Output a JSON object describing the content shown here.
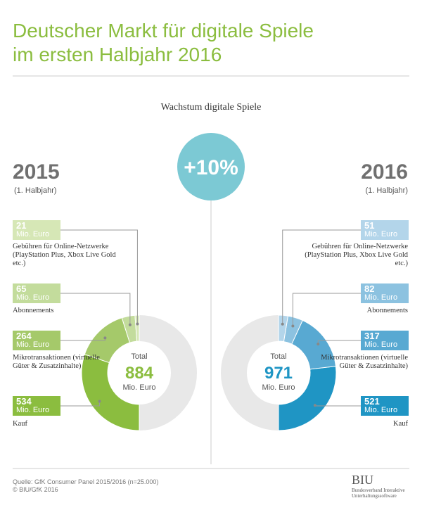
{
  "header": {
    "title_line1": "Deutscher Markt für digitale Spiele",
    "title_line2": "im ersten Halbjahr 2016"
  },
  "growth": {
    "label": "Wachstum digitale Spiele",
    "value_text": "+10%"
  },
  "chart_data": [
    {
      "type": "donut",
      "title": "2015",
      "subtitle": "(1. Halbjahr)",
      "side": "left",
      "direction": "clockwise",
      "categories": [
        "Gebühren für Online-Netzwerke (PlayStation Plus, Xbox Live Gold etc.)",
        "Abonnements",
        "Mikrotransaktionen (virtuelle Güter & Zusatzinhalte)",
        "Kauf"
      ],
      "values": [
        21,
        65,
        264,
        534
      ],
      "colors": [
        "#d6e7b6",
        "#c3dc9c",
        "#a5c96a",
        "#8bbd3f"
      ],
      "unit": "Mio. Euro",
      "total_label": "Total",
      "total": 884,
      "total_color": "#8bbd3f"
    },
    {
      "type": "donut",
      "title": "2016",
      "subtitle": "(1. Halbjahr)",
      "side": "right",
      "direction": "counterclockwise",
      "categories": [
        "Gebühren für Online-Netzwerke (PlayStation Plus, Xbox Live Gold etc.)",
        "Abonnements",
        "Mikrotransaktionen (virtuelle Güter & Zusatzinhalte)",
        "Kauf"
      ],
      "values": [
        51,
        82,
        317,
        521
      ],
      "colors": [
        "#b3d5ea",
        "#8cc2e0",
        "#58a9d2",
        "#1f95c4"
      ],
      "unit": "Mio. Euro",
      "total_label": "Total",
      "total": 971,
      "total_color": "#1f95c4"
    }
  ],
  "footer": {
    "source": "Quelle: GfK Consumer Panel 2015/2016 (n=25.000)",
    "copyright": "© BIU/GfK 2016",
    "logo": "BIU",
    "logo_text": "Bundesverband Interaktive Unterhaltungssoftware"
  }
}
